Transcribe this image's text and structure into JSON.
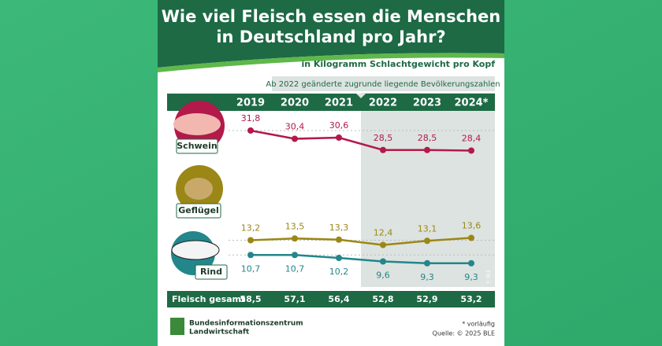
{
  "header": {
    "title": [
      "Wie viel Fleisch essen die Menschen",
      "in Deutschland pro Jahr?"
    ],
    "subtitle": "in Kilogramm Schlachtgewicht pro Kopf"
  },
  "chart_data": {
    "type": "line",
    "note": "Ab 2022 geänderte zugrunde liegende Bevölkerungszahlen",
    "categories": [
      "2019",
      "2020",
      "2021",
      "2022",
      "2023",
      "2024*"
    ],
    "series": [
      {
        "name": "Schwein",
        "color": "#b3194a",
        "values": [
          31.8,
          30.4,
          30.6,
          28.5,
          28.5,
          28.4
        ],
        "value_labels": [
          "31,8",
          "30,4",
          "30,6",
          "28,5",
          "28,5",
          "28,4"
        ]
      },
      {
        "name": "Geflügel",
        "color": "#9b8716",
        "values": [
          13.2,
          13.5,
          13.3,
          12.4,
          13.1,
          13.6
        ],
        "value_labels": [
          "13,2",
          "13,5",
          "13,3",
          "12,4",
          "13,1",
          "13,6"
        ]
      },
      {
        "name": "Rind",
        "color": "#23868a",
        "values": [
          10.7,
          10.7,
          10.2,
          9.6,
          9.3,
          9.3
        ],
        "value_labels": [
          "10,7",
          "10,7",
          "10,2",
          "9,6",
          "9,3",
          "9,3"
        ]
      }
    ],
    "total": {
      "name": "Fleisch gesamt",
      "values": [
        58.5,
        57.1,
        56.4,
        52.8,
        52.9,
        53.2
      ],
      "value_labels": [
        "58,5",
        "57,1",
        "56,4",
        "52,8",
        "52,9",
        "53,2"
      ]
    }
  },
  "footer": {
    "logo": [
      "Bundesinformationszentrum",
      "Landwirtschaft"
    ],
    "footnote": "* vorläufig",
    "source": "Quelle: © 2025 BLE",
    "watermark": "© BLE"
  }
}
